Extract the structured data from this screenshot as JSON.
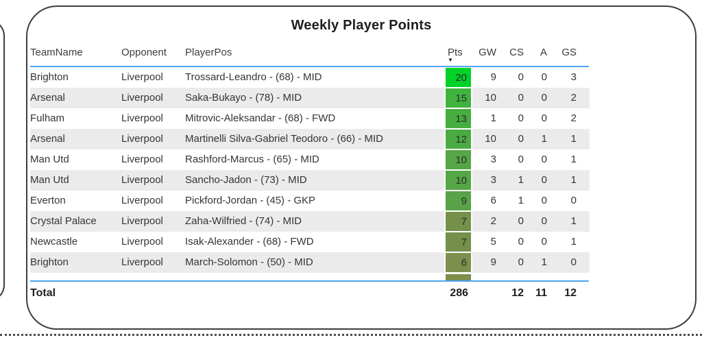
{
  "visual": {
    "title": "Weekly Player Points"
  },
  "table": {
    "columns": [
      {
        "label": "TeamName"
      },
      {
        "label": "Opponent"
      },
      {
        "label": "PlayerPos"
      },
      {
        "label": "Pts"
      },
      {
        "label": "GW"
      },
      {
        "label": "CS"
      },
      {
        "label": "A"
      },
      {
        "label": "GS"
      }
    ],
    "sort": {
      "column": "Pts",
      "direction": "desc",
      "icon": "▼"
    },
    "rows": [
      {
        "team": "Brighton",
        "opponent": "Liverpool",
        "player": "Trossard-Leandro - (68) - MID",
        "pts": "20",
        "gw": "9",
        "cs": "0",
        "a": "0",
        "gs": "3",
        "pts_color": "#00d228"
      },
      {
        "team": "Arsenal",
        "opponent": "Liverpool",
        "player": "Saka-Bukayo - (78) - MID",
        "pts": "15",
        "gw": "10",
        "cs": "0",
        "a": "0",
        "gs": "2",
        "pts_color": "#3eb33e"
      },
      {
        "team": "Fulham",
        "opponent": "Liverpool",
        "player": "Mitrovic-Aleksandar - (68) - FWD",
        "pts": "13",
        "gw": "1",
        "cs": "0",
        "a": "0",
        "gs": "2",
        "pts_color": "#46ae3f"
      },
      {
        "team": "Arsenal",
        "opponent": "Liverpool",
        "player": "Martinelli Silva-Gabriel Teodoro - (66) - MID",
        "pts": "12",
        "gw": "10",
        "cs": "0",
        "a": "1",
        "gs": "1",
        "pts_color": "#4bab43"
      },
      {
        "team": "Man Utd",
        "opponent": "Liverpool",
        "player": "Rashford-Marcus - (65) - MID",
        "pts": "10",
        "gw": "3",
        "cs": "0",
        "a": "0",
        "gs": "1",
        "pts_color": "#55a646"
      },
      {
        "team": "Man Utd",
        "opponent": "Liverpool",
        "player": "Sancho-Jadon - (73) - MID",
        "pts": "10",
        "gw": "3",
        "cs": "1",
        "a": "0",
        "gs": "1",
        "pts_color": "#55a646"
      },
      {
        "team": "Everton",
        "opponent": "Liverpool",
        "player": "Pickford-Jordan - (45) - GKP",
        "pts": "9",
        "gw": "6",
        "cs": "1",
        "a": "0",
        "gs": "0",
        "pts_color": "#58a347"
      },
      {
        "team": "Crystal Palace",
        "opponent": "Liverpool",
        "player": "Zaha-Wilfried - (74) - MID",
        "pts": "7",
        "gw": "2",
        "cs": "0",
        "a": "0",
        "gs": "1",
        "pts_color": "#74904a"
      },
      {
        "team": "Newcastle",
        "opponent": "Liverpool",
        "player": "Isak-Alexander - (68) - FWD",
        "pts": "7",
        "gw": "5",
        "cs": "0",
        "a": "0",
        "gs": "1",
        "pts_color": "#74904a"
      },
      {
        "team": "Brighton",
        "opponent": "Liverpool",
        "player": "March-Solomon - (50) - MID",
        "pts": "6",
        "gw": "9",
        "cs": "0",
        "a": "1",
        "gs": "0",
        "pts_color": "#7d8f4d"
      }
    ],
    "partial_row": {
      "partial": true,
      "pts_color": "#7c8e4a"
    },
    "total": {
      "label": "Total",
      "pts": "286",
      "gw": "",
      "cs": "12",
      "a": "11",
      "gs": "12"
    }
  },
  "scrollbar": {
    "up_icon": "∧",
    "down_icon": "∨"
  },
  "colors": {
    "accent_line": "#4ea3f2",
    "alt_row": "#ebebeb",
    "card_border": "#3d3d3d",
    "pts_scale_high": "#00d228",
    "pts_scale_low": "#7d8f4d"
  }
}
